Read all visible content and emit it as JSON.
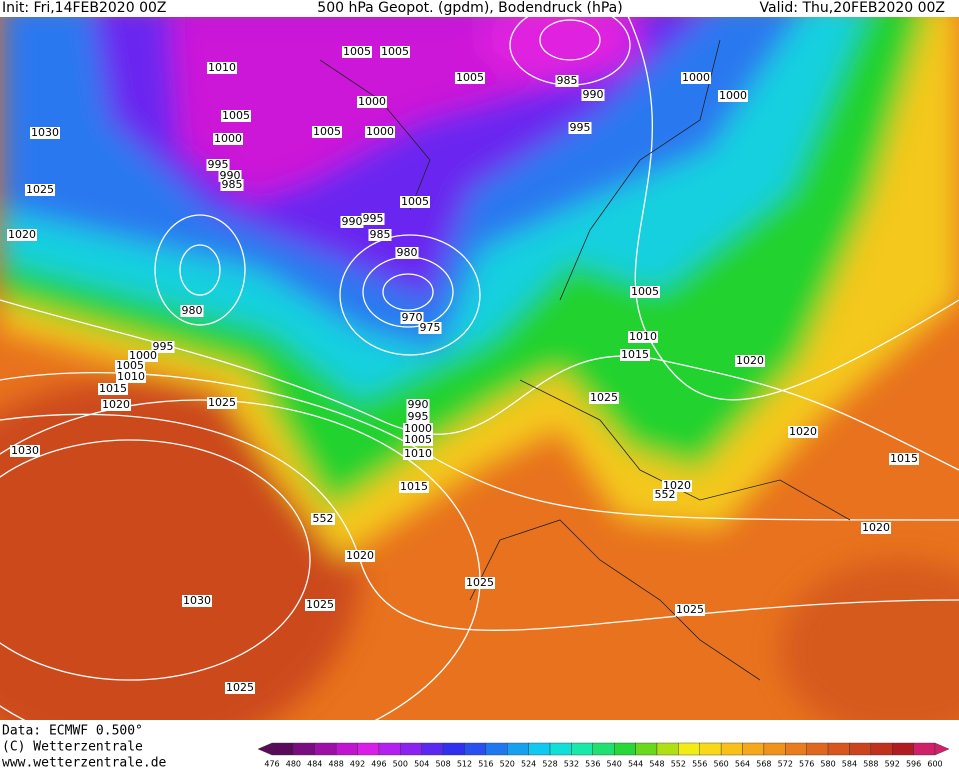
{
  "header": {
    "init": "Init: Fri,14FEB2020 00Z",
    "title": "500 hPa Geopot. (gpdm), Bodendruck (hPa)",
    "valid": "Valid: Thu,20FEB2020 00Z"
  },
  "footer": {
    "data": "Data: ECMWF  0.500°",
    "copyright": "(C) Wetterzentrale",
    "url": "www.wetterzentrale.de"
  },
  "isobar_labels": [
    "1005",
    "1005",
    "1010",
    "1005",
    "985",
    "1000",
    "990",
    "1000",
    "1000",
    "1005",
    "1030",
    "1005",
    "1000",
    "995",
    "1000",
    "995",
    "990",
    "985",
    "1025",
    "1005",
    "995",
    "990",
    "985",
    "1020",
    "980",
    "1005",
    "980",
    "970",
    "975",
    "1010",
    "995",
    "1000",
    "1015",
    "1005",
    "1010",
    "1020",
    "1015",
    "1025",
    "1020",
    "1025",
    "990",
    "995",
    "1000",
    "1005",
    "1010",
    "1020",
    "1030",
    "1015",
    "1015",
    "1020",
    "1020",
    "1020",
    "1025",
    "1030",
    "1025",
    "1025",
    "1025"
  ],
  "height_labels": [
    "552",
    "552"
  ],
  "colorbar": {
    "levels": [
      476,
      480,
      484,
      488,
      492,
      496,
      500,
      504,
      508,
      512,
      516,
      520,
      524,
      528,
      532,
      536,
      540,
      544,
      548,
      552,
      556,
      560,
      564,
      568,
      572,
      576,
      580,
      584,
      588,
      592,
      596,
      600
    ],
    "colors": [
      "#5a0a5a",
      "#7a0c82",
      "#9c10a8",
      "#c014d0",
      "#d81ee8",
      "#b420f0",
      "#8c22f0",
      "#5a28f0",
      "#3030f0",
      "#2850f0",
      "#2078f0",
      "#18a0f0",
      "#10c8f0",
      "#10e0d8",
      "#18e8a8",
      "#20e070",
      "#28d838",
      "#6ad81c",
      "#b0e014",
      "#f0ec14",
      "#f8d818",
      "#f8c018",
      "#f4a81a",
      "#f0921c",
      "#e87c1e",
      "#e0681e",
      "#d8561e",
      "#cc441e",
      "#c0321e",
      "#b01c20",
      "#d0206a"
    ]
  }
}
